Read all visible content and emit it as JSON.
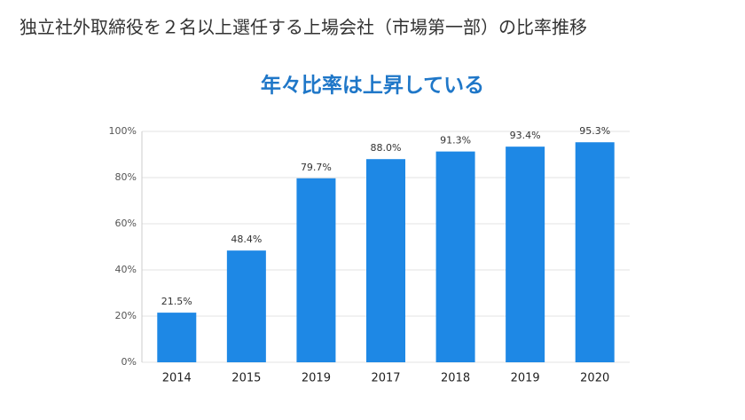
{
  "chart_data": {
    "type": "bar",
    "title": "独立社外取締役を２名以上選任する上場会社（市場第一部）の比率推移",
    "subtitle": "年々比率は上昇している",
    "categories": [
      "2014",
      "2015",
      "2019",
      "2017",
      "2018",
      "2019",
      "2020"
    ],
    "values": [
      21.5,
      48.4,
      79.7,
      88.0,
      91.3,
      93.4,
      95.3
    ],
    "value_labels": [
      "21.5%",
      "48.4%",
      "79.7%",
      "88.0%",
      "91.3%",
      "93.4%",
      "95.3%"
    ],
    "color": "#1e88e5",
    "ylim": [
      0,
      100
    ],
    "yticks": [
      {
        "value": 0,
        "label": "0%"
      },
      {
        "value": 20,
        "label": "20%"
      },
      {
        "value": 40,
        "label": "40%"
      },
      {
        "value": 60,
        "label": "60%"
      },
      {
        "value": 80,
        "label": "80%"
      },
      {
        "value": 100,
        "label": "100%"
      }
    ],
    "grid": true
  }
}
